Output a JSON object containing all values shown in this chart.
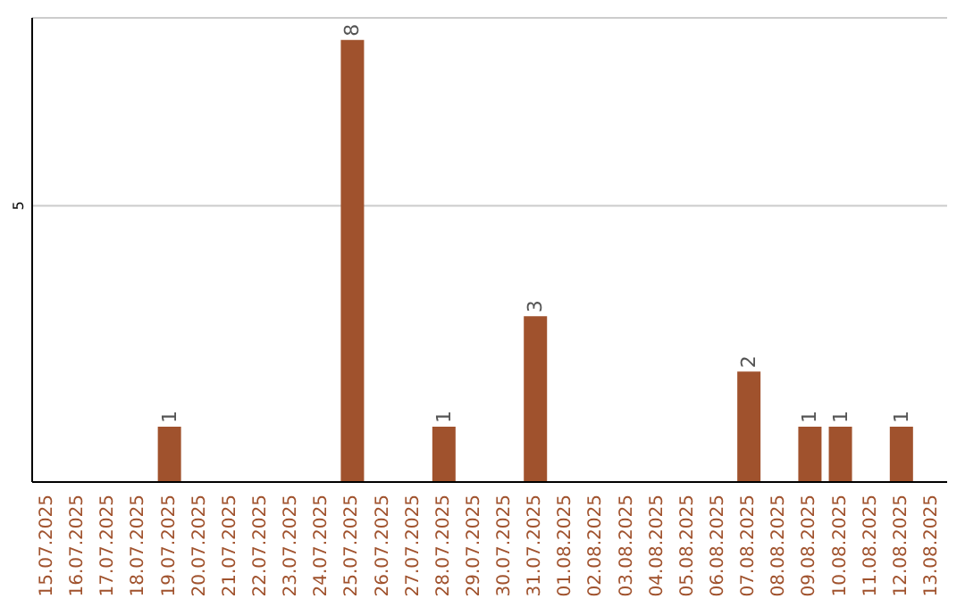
{
  "chart_data": {
    "type": "bar",
    "categories": [
      "15.07.2025",
      "16.07.2025",
      "17.07.2025",
      "18.07.2025",
      "19.07.2025",
      "20.07.2025",
      "21.07.2025",
      "22.07.2025",
      "23.07.2025",
      "24.07.2025",
      "25.07.2025",
      "26.07.2025",
      "27.07.2025",
      "28.07.2025",
      "29.07.2025",
      "30.07.2025",
      "31.07.2025",
      "01.08.2025",
      "02.08.2025",
      "03.08.2025",
      "04.08.2025",
      "05.08.2025",
      "06.08.2025",
      "07.08.2025",
      "08.08.2025",
      "09.08.2025",
      "10.08.2025",
      "11.08.2025",
      "12.08.2025",
      "13.08.2025"
    ],
    "values": [
      0,
      0,
      0,
      0,
      1,
      0,
      0,
      0,
      0,
      0,
      8,
      0,
      0,
      1,
      0,
      0,
      3,
      0,
      0,
      0,
      0,
      0,
      0,
      2,
      0,
      1,
      1,
      0,
      1,
      0
    ],
    "value_labels": [
      null,
      null,
      null,
      null,
      "1",
      null,
      null,
      null,
      null,
      null,
      "8",
      null,
      null,
      "1",
      null,
      null,
      "3",
      null,
      null,
      null,
      null,
      null,
      null,
      "2",
      null,
      "1",
      "1",
      null,
      "1",
      null
    ],
    "color": "#a0522d",
    "ylim": [
      0,
      8.4
    ],
    "yticks": [
      5
    ],
    "grid": "y"
  }
}
